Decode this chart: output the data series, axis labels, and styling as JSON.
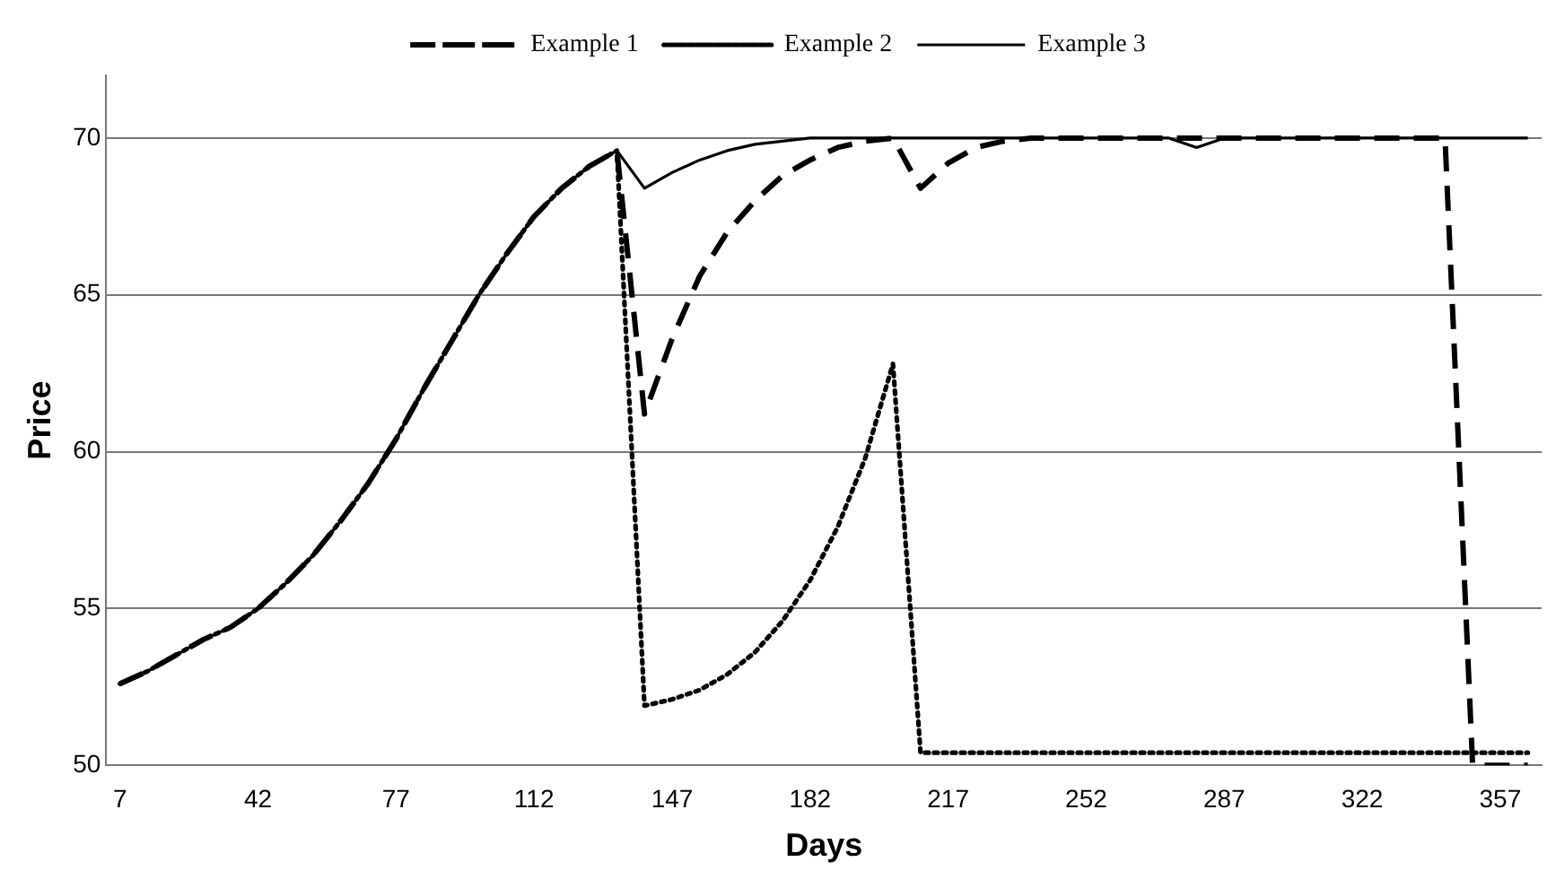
{
  "chart_data": {
    "type": "line",
    "xlabel": "Days",
    "ylabel": "Price",
    "x": [
      7,
      14,
      21,
      28,
      35,
      42,
      49,
      56,
      63,
      70,
      77,
      84,
      91,
      98,
      105,
      112,
      119,
      126,
      133,
      140,
      147,
      154,
      161,
      168,
      175,
      182,
      189,
      196,
      203,
      210,
      217,
      224,
      231,
      238,
      245,
      252,
      259,
      266,
      273,
      280,
      287,
      294,
      301,
      308,
      315,
      322,
      329,
      336,
      343,
      350,
      357,
      364
    ],
    "xlim": [
      3.5,
      367.5
    ],
    "xticks": [
      7,
      42,
      77,
      112,
      147,
      182,
      217,
      252,
      287,
      322,
      357
    ],
    "ylim": [
      50,
      72
    ],
    "yticks": [
      50,
      55,
      60,
      65,
      70
    ],
    "grid": "y",
    "legend": "top",
    "marker": "none",
    "series": [
      {
        "name": "Example 1",
        "color": "#000000",
        "line_style": "dashed",
        "values": [
          52.6,
          53.0,
          53.5,
          54.0,
          54.4,
          55.0,
          55.8,
          56.7,
          57.8,
          59.0,
          60.4,
          62.0,
          63.5,
          65.0,
          66.3,
          67.5,
          68.4,
          69.1,
          69.6,
          61.2,
          63.6,
          65.6,
          67.0,
          68.0,
          68.8,
          69.3,
          69.7,
          69.9,
          70.0,
          68.4,
          69.2,
          69.7,
          69.9,
          70,
          70,
          70,
          70,
          70,
          70,
          70,
          70,
          70,
          70,
          70,
          70,
          70,
          70,
          70,
          70,
          50,
          50,
          50
        ]
      },
      {
        "name": "Example 2",
        "color": "#000000",
        "line_style": "dotted",
        "values": [
          52.6,
          53.0,
          53.5,
          54.0,
          54.4,
          55.0,
          55.8,
          56.7,
          57.8,
          59.0,
          60.4,
          62.0,
          63.5,
          65.0,
          66.3,
          67.5,
          68.4,
          69.1,
          69.6,
          51.9,
          52.1,
          52.4,
          52.9,
          53.6,
          54.6,
          55.9,
          57.6,
          59.8,
          62.8,
          50.4,
          50.4,
          50.4,
          50.4,
          50.4,
          50.4,
          50.4,
          50.4,
          50.4,
          50.4,
          50.4,
          50.4,
          50.4,
          50.4,
          50.4,
          50.4,
          50.4,
          50.4,
          50.4,
          50.4,
          50.4,
          50.4,
          50.4
        ]
      },
      {
        "name": "Example 3",
        "color": "#000000",
        "line_style": "solid",
        "values": [
          52.6,
          53.0,
          53.5,
          54.0,
          54.4,
          55.0,
          55.8,
          56.7,
          57.8,
          59.0,
          60.4,
          62.0,
          63.5,
          65.0,
          66.3,
          67.5,
          68.4,
          69.1,
          69.6,
          68.4,
          68.9,
          69.3,
          69.6,
          69.8,
          69.9,
          70,
          70,
          70,
          70,
          70,
          70,
          70,
          70,
          70,
          70,
          70,
          70,
          70,
          70,
          69.7,
          70,
          70,
          70,
          70,
          70,
          70,
          70,
          70,
          70,
          70,
          70,
          70
        ]
      }
    ]
  }
}
